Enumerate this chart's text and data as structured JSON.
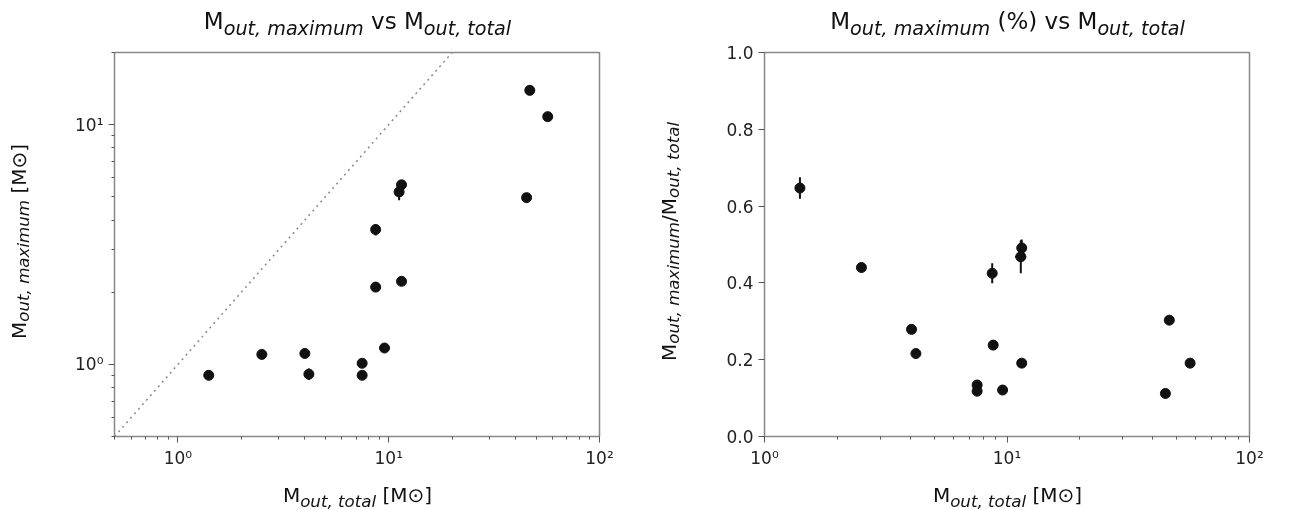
{
  "chart_data": [
    {
      "type": "scatter",
      "title": "M$_{out, maximum}$ vs M$_{out, total}$",
      "xlabel": "M$_{out, total}$ [M⊙]",
      "ylabel": "M$_{out, maximum}$ [M⊙]",
      "log": "xy",
      "grid": false,
      "marker": "circle",
      "xlim": [
        0.5,
        100
      ],
      "ylim": [
        0.5,
        20
      ],
      "xticks": [
        {
          "value": 1,
          "label": "10⁰"
        },
        {
          "value": 10,
          "label": "10¹"
        },
        {
          "value": 100,
          "label": "10²"
        }
      ],
      "yticks": [
        {
          "value": 1,
          "label": "10⁰"
        },
        {
          "value": 10,
          "label": "10¹"
        }
      ],
      "series": [
        {
          "type": "line",
          "line_style": "dotted",
          "marker": "none",
          "color": "#888888",
          "x": [
            0.5,
            20
          ],
          "values": [
            0.5,
            20
          ]
        },
        {
          "color": "#111111",
          "x": [
            1.4,
            2.5,
            4.0,
            4.18,
            7.48,
            7.48,
            9.55,
            8.67,
            8.67,
            11.5,
            11.2,
            11.5,
            45.1,
            46.7,
            56.8
          ],
          "values": [
            0.9,
            1.1,
            1.11,
            0.91,
            1.01,
            0.9,
            1.17,
            2.1,
            3.65,
            2.22,
            5.24,
            5.61,
            4.96,
            13.9,
            10.8
          ],
          "errors": [
            null,
            null,
            null,
            0.05,
            null,
            null,
            null,
            null,
            0.2,
            null,
            0.4,
            null,
            null,
            null,
            null
          ]
        }
      ]
    },
    {
      "type": "scatter",
      "title": "M$_{out, maximum}$ (%) vs M$_{out, total}$",
      "xlabel": "M$_{out, total}$ [M⊙]",
      "ylabel": "M$_{out, maximum}$/M$_{out, total}$",
      "log": "x",
      "grid": false,
      "marker": "circle",
      "xlim": [
        1,
        100
      ],
      "ylim": [
        0,
        1
      ],
      "xticks": [
        {
          "value": 1,
          "label": "10⁰"
        },
        {
          "value": 10,
          "label": "10¹"
        },
        {
          "value": 100,
          "label": "10²"
        }
      ],
      "yticks": [
        {
          "value": 0,
          "label": "0.0"
        },
        {
          "value": 0.2,
          "label": "0.2"
        },
        {
          "value": 0.4,
          "label": "0.4"
        },
        {
          "value": 0.6,
          "label": "0.6"
        },
        {
          "value": 0.8,
          "label": "0.8"
        },
        {
          "value": 1,
          "label": "1.0"
        }
      ],
      "series": [
        {
          "color": "#111111",
          "x": [
            1.4,
            2.51,
            4.04,
            4.21,
            7.53,
            7.53,
            8.69,
            8.77,
            9.59,
            11.5,
            11.4,
            11.5,
            45.0,
            46.7,
            56.9
          ],
          "values": [
            0.647,
            0.44,
            0.279,
            0.216,
            0.134,
            0.118,
            0.425,
            0.238,
            0.121,
            0.491,
            0.468,
            0.191,
            0.112,
            0.303,
            0.191
          ],
          "errors": [
            0.028,
            null,
            null,
            null,
            null,
            null,
            0.026,
            null,
            null,
            0.022,
            0.043,
            null,
            null,
            null,
            null
          ],
          "xerrors": [
            null,
            null,
            null,
            null,
            null,
            null,
            null,
            null,
            null,
            null,
            0.6,
            null,
            null,
            null,
            null
          ]
        }
      ]
    }
  ]
}
